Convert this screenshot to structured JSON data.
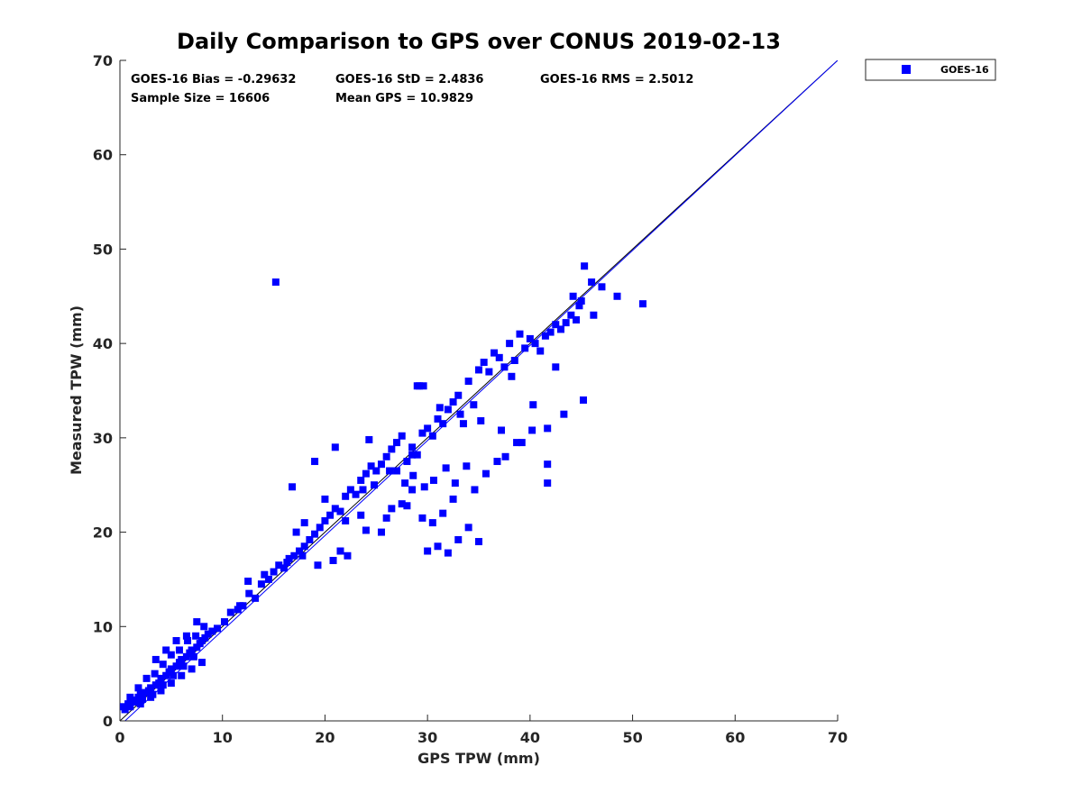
{
  "colors": {
    "series": "#0000ff",
    "line": "#0000ff",
    "one_to_one": "#000000",
    "axis": "#262626"
  },
  "stats": {
    "bias": "GOES-16 Bias = -0.29632",
    "std": "GOES-16 StD = 2.4836",
    "rms": "GOES-16 RMS = 2.5012",
    "sample_size": "Sample Size = 16606",
    "mean_gps": "Mean GPS = 10.9829"
  },
  "chart_data": {
    "type": "scatter",
    "title": "Daily Comparison to GPS over CONUS 2019-02-13",
    "xlabel": "GPS TPW (mm)",
    "ylabel": "Measured TPW (mm)",
    "xlim": [
      0,
      70
    ],
    "ylim": [
      0,
      70
    ],
    "xticks": [
      "0",
      "10",
      "20",
      "30",
      "40",
      "50",
      "60",
      "70"
    ],
    "yticks": [
      "0",
      "10",
      "20",
      "30",
      "40",
      "50",
      "60",
      "70"
    ],
    "legend": [
      "GOES-16"
    ],
    "legend_position": "top-right, outside plot",
    "reference_lines": [
      {
        "name": "one-to-one",
        "x": [
          0,
          70
        ],
        "y": [
          0,
          70
        ]
      },
      {
        "name": "GOES-16 fit",
        "x": [
          0,
          70
        ],
        "y": [
          -0.5,
          70
        ]
      }
    ],
    "series": [
      {
        "name": "GOES-16",
        "marker": "square",
        "x": [
          0.3,
          0.5,
          0.8,
          1.0,
          1.2,
          1.5,
          1.8,
          2.0,
          2.2,
          2.5,
          2.8,
          3.0,
          3.2,
          3.5,
          3.8,
          4.0,
          4.2,
          4.5,
          4.8,
          5.0,
          5.2,
          5.5,
          5.8,
          6.0,
          6.2,
          6.5,
          6.8,
          7.0,
          7.2,
          7.5,
          7.8,
          8.0,
          8.3,
          8.6,
          9.0,
          1.0,
          1.8,
          2.6,
          3.4,
          4.2,
          5.0,
          5.8,
          6.6,
          7.4,
          8.2,
          2.0,
          3.0,
          4.0,
          5.0,
          6.0,
          7.0,
          8.0,
          3.5,
          4.5,
          5.5,
          6.5,
          7.5,
          9.5,
          10.2,
          10.8,
          11.5,
          12.0,
          12.6,
          13.2,
          13.8,
          14.5,
          15.0,
          15.5,
          16.0,
          16.5,
          17.0,
          17.5,
          18.0,
          18.5,
          19.0,
          19.5,
          20.0,
          20.5,
          21.0,
          21.5,
          22.0,
          22.5,
          23.0,
          23.5,
          24.0,
          24.5,
          25.0,
          25.5,
          26.0,
          26.5,
          27.0,
          27.5,
          28.0,
          28.5,
          29.0,
          29.5,
          30.0,
          30.5,
          31.0,
          31.5,
          32.0,
          32.5,
          33.0,
          33.5,
          34.0,
          34.5,
          35.0,
          35.5,
          36.0,
          36.5,
          37.0,
          37.5,
          38.0,
          38.5,
          39.0,
          39.5,
          40.0,
          40.5,
          41.0,
          41.5,
          42.0,
          42.5,
          43.0,
          43.5,
          44.0,
          44.5,
          45.0,
          46.0,
          47.0,
          48.5,
          51.0,
          15.2,
          16.3,
          17.8,
          19.3,
          20.8,
          22.2,
          23.7,
          24.8,
          26.3,
          27.8,
          28.6,
          29.7,
          30.6,
          31.8,
          32.7,
          33.8,
          34.6,
          35.7,
          36.8,
          37.6,
          38.7,
          40.2,
          41.7,
          43.3,
          45.2,
          29.0,
          30.0,
          31.0,
          32.0,
          33.0,
          34.0,
          35.0,
          30.5,
          31.5,
          32.5,
          25.5,
          26.5,
          27.5,
          28.5,
          29.5,
          24.0,
          26.0,
          28.0,
          22.0,
          20.0,
          18.0,
          21.5,
          23.5,
          19.0,
          27.0,
          29.2,
          31.2,
          33.2,
          35.2,
          37.2,
          39.2,
          41.7,
          41.7,
          28.5,
          44.2,
          45.3,
          40.3,
          42.5,
          46.2,
          44.8,
          38.2,
          29.6,
          21.0,
          17.2,
          14.1,
          11.7,
          16.8,
          24.3,
          12.5
        ],
        "y": [
          1.5,
          1.2,
          1.8,
          1.5,
          2.2,
          2.0,
          2.5,
          2.8,
          2.3,
          3.0,
          3.2,
          3.5,
          2.8,
          3.8,
          4.0,
          4.5,
          3.8,
          4.8,
          5.2,
          5.5,
          4.8,
          5.8,
          6.2,
          6.5,
          5.8,
          6.8,
          7.2,
          7.5,
          6.8,
          7.8,
          8.2,
          8.5,
          8.8,
          9.2,
          9.5,
          2.5,
          3.5,
          4.5,
          5.0,
          6.0,
          7.0,
          7.5,
          8.5,
          9.0,
          10.0,
          1.8,
          2.5,
          3.2,
          4.0,
          4.8,
          5.5,
          6.2,
          6.5,
          7.5,
          8.5,
          9.0,
          10.5,
          9.8,
          10.5,
          11.5,
          11.8,
          12.2,
          13.5,
          13.0,
          14.5,
          15.0,
          15.8,
          16.5,
          16.2,
          17.2,
          17.5,
          18.0,
          18.5,
          19.2,
          19.8,
          20.5,
          21.2,
          21.8,
          22.5,
          22.2,
          23.8,
          24.5,
          24.0,
          25.5,
          26.2,
          27.0,
          26.5,
          27.2,
          28.0,
          28.8,
          29.5,
          30.2,
          27.5,
          29.0,
          28.2,
          30.5,
          31.0,
          30.2,
          32.0,
          31.5,
          33.0,
          33.8,
          34.5,
          31.5,
          36.0,
          33.5,
          37.2,
          38.0,
          37.0,
          39.0,
          38.5,
          37.5,
          40.0,
          38.2,
          41.0,
          39.5,
          40.5,
          40.0,
          39.2,
          40.8,
          41.2,
          42.0,
          41.5,
          42.2,
          43.0,
          42.5,
          44.5,
          46.5,
          46.0,
          45.0,
          44.2,
          46.5,
          16.8,
          17.5,
          16.5,
          17.0,
          17.5,
          24.5,
          25.0,
          26.5,
          25.2,
          26.0,
          24.8,
          25.5,
          26.8,
          25.2,
          27.0,
          24.5,
          26.2,
          27.5,
          28.0,
          29.5,
          30.8,
          31.0,
          32.5,
          34.0,
          35.5,
          18.0,
          18.5,
          17.8,
          19.2,
          20.5,
          19.0,
          21.0,
          22.0,
          23.5,
          20.0,
          22.5,
          23.0,
          24.5,
          21.5,
          20.2,
          21.5,
          22.8,
          21.2,
          23.5,
          21.0,
          18.0,
          21.8,
          27.5,
          26.5,
          35.5,
          33.2,
          32.5,
          31.8,
          30.8,
          29.5,
          25.2,
          27.2,
          28.2,
          45.0,
          48.2,
          33.5,
          37.5,
          43.0,
          44.0,
          36.5,
          35.5,
          29.0,
          20.0,
          15.5,
          12.2,
          24.8,
          29.8,
          14.8
        ]
      }
    ]
  }
}
